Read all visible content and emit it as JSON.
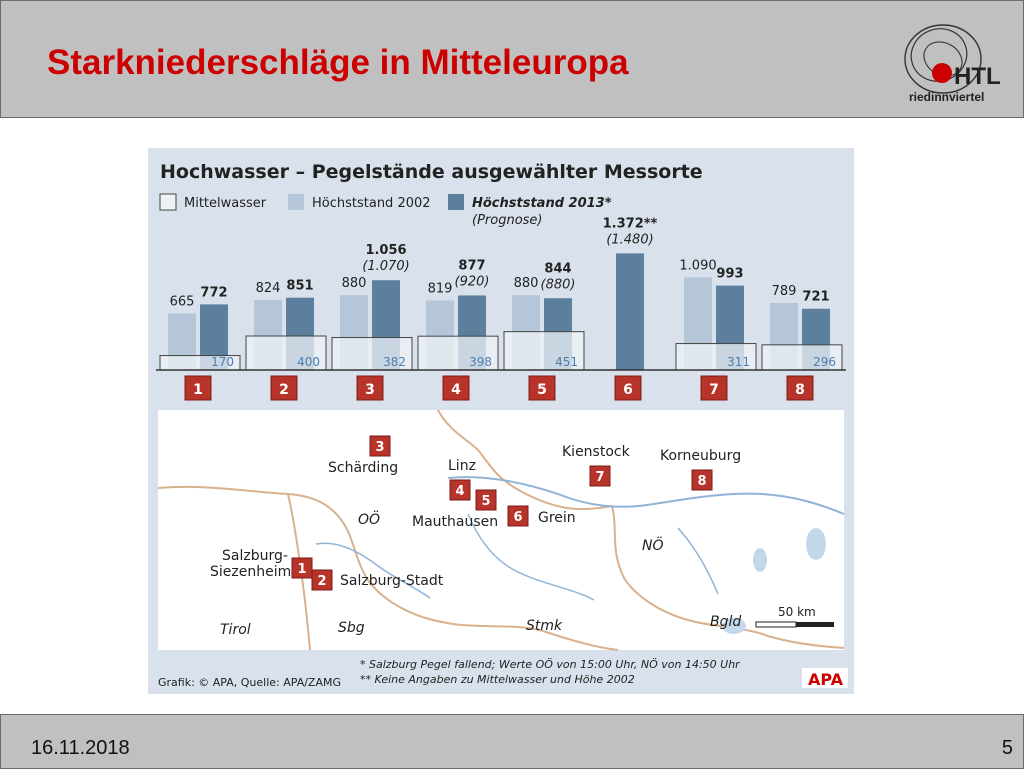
{
  "slide": {
    "title": "Starkniederschläge in Mitteleuropa",
    "date": "16.11.2018",
    "page": "5",
    "accent_color": "#cc0000",
    "logo_text": "HTL",
    "logo_subtext": "riedinnviertel"
  },
  "chart_data": {
    "type": "bar",
    "title": "Hochwasser – Pegelstände ausgewählter Messorte",
    "legend": [
      {
        "label": "Mittelwasser",
        "color": "#edf2f7"
      },
      {
        "label": "Höchststand 2002",
        "color": "#b4c6d7"
      },
      {
        "label": "Höchststand 2013*",
        "sublabel": "(Prognose)",
        "color": "#5b7f9c"
      }
    ],
    "categories": [
      "1",
      "2",
      "3",
      "4",
      "5",
      "6",
      "7",
      "8"
    ],
    "series": [
      {
        "name": "Mittelwasser",
        "values": [
          170,
          400,
          382,
          398,
          451,
          null,
          311,
          296
        ],
        "labels": [
          "170",
          "400",
          "382",
          "398",
          "451",
          "",
          "311",
          "296"
        ]
      },
      {
        "name": "Höchststand 2002",
        "values": [
          665,
          824,
          880,
          819,
          880,
          null,
          1090,
          789
        ],
        "labels": [
          "665",
          "824",
          "880",
          "819",
          "880",
          "",
          "1.090",
          "789"
        ]
      },
      {
        "name": "Höchststand 2013*",
        "values": [
          772,
          851,
          1056,
          877,
          844,
          1372,
          993,
          721
        ],
        "labels": [
          "772",
          "851",
          "1.056",
          "877",
          "844",
          "1.372**",
          "993",
          "721"
        ]
      }
    ],
    "forecast_labels": [
      "",
      "",
      "(1.070)",
      "(920)",
      "(880)",
      "(1.480)",
      "",
      ""
    ],
    "map": {
      "places": [
        "Salzburg-Siezenheim",
        "Salzburg-Stadt",
        "Schärding",
        "Linz",
        "Mauthausen",
        "Grein",
        "Kienstock",
        "Korneuburg"
      ],
      "regions": [
        "OÖ",
        "NÖ",
        "Tirol",
        "Sbg",
        "Stmk",
        "Bgld"
      ],
      "scale": "50 km"
    },
    "footnotes": [
      "* Salzburg Pegel fallend; Werte OÖ von 15:00 Uhr, NÖ von 14:50 Uhr",
      "** Keine Angaben zu Mittelwasser und Höhe 2002"
    ],
    "credit": "Grafik: © APA, Quelle: APA/ZAMG",
    "brand": "APA"
  }
}
